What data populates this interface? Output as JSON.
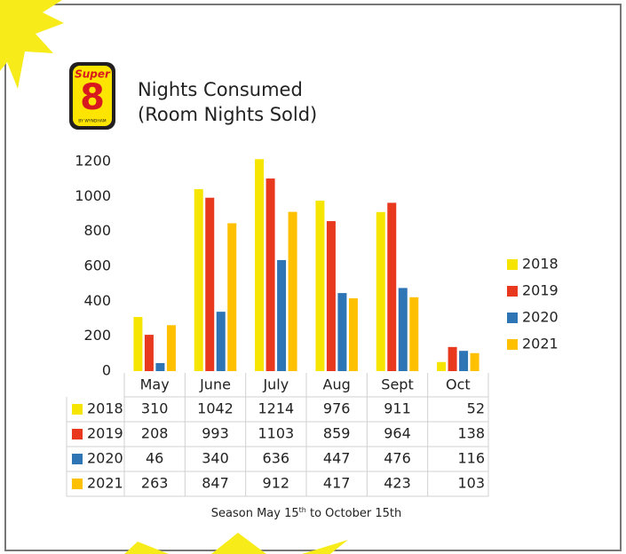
{
  "logo": {
    "word": "Super",
    "number": "8",
    "byline": "BY WYNDHAM"
  },
  "footnote": [
    "Season May 15",
    "th",
    " to October 15th"
  ],
  "chart_data": {
    "type": "bar",
    "title": "Nights Consumed",
    "subtitle": "(Room Nights Sold)",
    "categories": [
      "May",
      "June",
      "July",
      "Aug",
      "Sept",
      "Oct"
    ],
    "series": [
      {
        "name": "2018",
        "color": "#f5e500",
        "values": [
          310,
          1042,
          1214,
          976,
          911,
          52
        ]
      },
      {
        "name": "2019",
        "color": "#e8391f",
        "values": [
          208,
          993,
          1103,
          859,
          964,
          138
        ]
      },
      {
        "name": "2020",
        "color": "#2e75b6",
        "values": [
          46,
          340,
          636,
          447,
          476,
          116
        ]
      },
      {
        "name": "2021",
        "color": "#ffc000",
        "values": [
          263,
          847,
          912,
          417,
          423,
          103
        ]
      }
    ],
    "ylim": [
      0,
      1200
    ],
    "yticks": [
      0,
      200,
      400,
      600,
      800,
      1000,
      1200
    ],
    "grid": false,
    "legend": "right",
    "data_table": true
  }
}
